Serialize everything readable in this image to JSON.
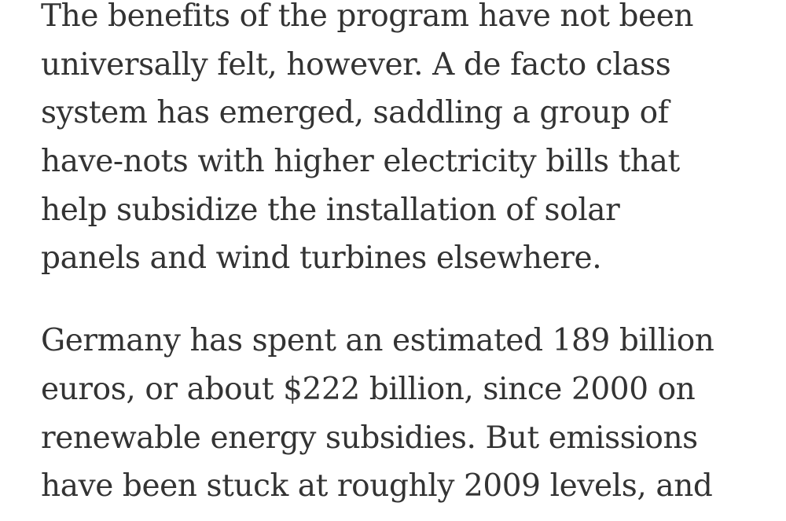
{
  "article": {
    "paragraphs": [
      {
        "lines": [
          "The benefits of the program have not been",
          "universally felt, however. A de facto class",
          "system has emerged, saddling a group of",
          "have-nots with higher electricity bills that",
          "help subsidize the installation of solar",
          "panels and wind turbines elsewhere."
        ]
      },
      {
        "lines": [
          "Germany has spent an estimated 189 billion",
          "euros, or about $222 billion, since 2000 on",
          "renewable energy subsidies. But emissions",
          "have been stuck at roughly 2009 levels, and"
        ]
      }
    ]
  }
}
